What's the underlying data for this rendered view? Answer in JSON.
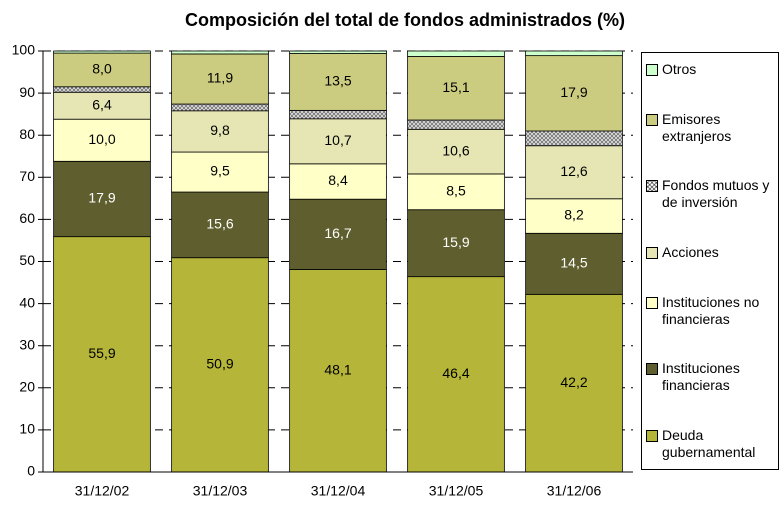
{
  "chart_data": {
    "type": "stacked_bar",
    "title": "Composición del total de fondos administrados (%)",
    "categories": [
      "31/12/02",
      "31/12/03",
      "31/12/04",
      "31/12/05",
      "31/12/06"
    ],
    "ylim": [
      0,
      100
    ],
    "yticks": [
      0,
      10,
      20,
      30,
      40,
      50,
      60,
      70,
      80,
      90,
      100
    ],
    "grid": true,
    "series": [
      {
        "name": "Deuda gubernamental",
        "color": "#b5b53a",
        "values": [
          55.9,
          50.9,
          48.1,
          46.4,
          42.2
        ],
        "value_labels": [
          "55,9",
          "50,9",
          "48,1",
          "46,4",
          "42,2"
        ]
      },
      {
        "name": "Instituciones financieras",
        "color": "#5e5e2e",
        "values": [
          17.9,
          15.6,
          16.7,
          15.9,
          14.5
        ],
        "value_labels": [
          "17,9",
          "15,6",
          "16,7",
          "15,9",
          "14,5"
        ],
        "label_color": "#ffffff"
      },
      {
        "name": "Instituciones no financieras",
        "color": "#ffffc8",
        "values": [
          10.0,
          9.5,
          8.4,
          8.5,
          8.2
        ],
        "value_labels": [
          "10,0",
          "9,5",
          "8,4",
          "8,5",
          "8,2"
        ]
      },
      {
        "name": "Acciones",
        "color": "#e6e6b4",
        "values": [
          6.4,
          9.8,
          10.7,
          10.6,
          12.6
        ],
        "value_labels": [
          "6,4",
          "9,8",
          "10,7",
          "10,6",
          "12,6"
        ]
      },
      {
        "name": "Fondos mutuos y de inversión",
        "color": "#808080",
        "hatch": true,
        "values": [
          1.3,
          1.6,
          2.0,
          2.2,
          3.5
        ]
      },
      {
        "name": "Emisores extranjeros",
        "color": "#cccc80",
        "values": [
          8.0,
          11.9,
          13.5,
          15.1,
          17.9
        ],
        "value_labels": [
          "8,0",
          "11,9",
          "13,5",
          "15,1",
          "17,9"
        ]
      },
      {
        "name": "Otros",
        "color": "#ccffcc",
        "values": [
          0.5,
          0.7,
          0.6,
          1.3,
          1.1
        ]
      }
    ]
  }
}
